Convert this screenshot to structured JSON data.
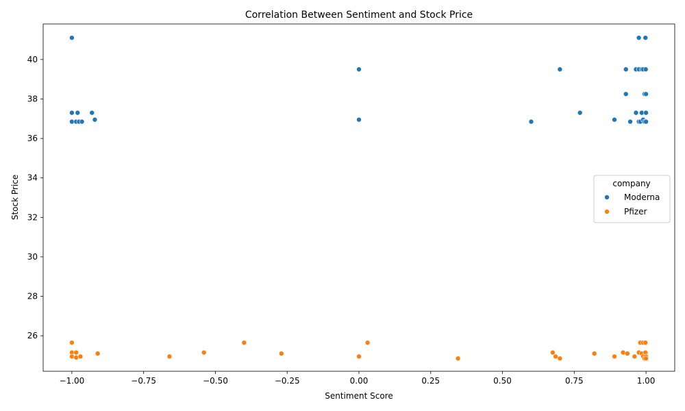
{
  "chart_data": {
    "type": "scatter",
    "title": "Correlation Between Sentiment and Stock Price",
    "xlabel": "Sentiment Score",
    "ylabel": "Stock Price",
    "xlim": [
      -1.1,
      1.1
    ],
    "ylim": [
      24.2,
      41.8
    ],
    "x_ticks": [
      -1.0,
      -0.75,
      -0.5,
      -0.25,
      0.0,
      0.25,
      0.5,
      0.75,
      1.0
    ],
    "x_tick_labels": [
      "−1.00",
      "−0.75",
      "−0.50",
      "−0.25",
      "0.00",
      "0.25",
      "0.50",
      "0.75",
      "1.00"
    ],
    "y_ticks": [
      26,
      28,
      30,
      32,
      34,
      36,
      38,
      40
    ],
    "y_tick_labels": [
      "26",
      "28",
      "30",
      "32",
      "34",
      "36",
      "38",
      "40"
    ],
    "grid": false,
    "legend": {
      "title": "company",
      "placement": "center-right"
    },
    "series": [
      {
        "name": "Moderna",
        "color": "#1f77b4",
        "points": [
          [
            -1.0,
            41.1
          ],
          [
            -1.0,
            37.3
          ],
          [
            -1.0,
            36.85
          ],
          [
            -0.98,
            37.3
          ],
          [
            -0.985,
            36.85
          ],
          [
            -0.975,
            36.85
          ],
          [
            -0.965,
            36.85
          ],
          [
            -0.93,
            37.3
          ],
          [
            -0.92,
            36.95
          ],
          [
            0.0,
            39.5
          ],
          [
            0.0,
            36.95
          ],
          [
            0.6,
            36.85
          ],
          [
            0.7,
            39.5
          ],
          [
            0.77,
            37.3
          ],
          [
            0.89,
            36.95
          ],
          [
            0.93,
            39.5
          ],
          [
            0.93,
            38.25
          ],
          [
            0.945,
            36.85
          ],
          [
            0.965,
            39.5
          ],
          [
            0.965,
            37.3
          ],
          [
            0.975,
            41.1
          ],
          [
            0.975,
            39.5
          ],
          [
            0.975,
            36.85
          ],
          [
            0.98,
            36.85
          ],
          [
            0.985,
            37.3
          ],
          [
            0.985,
            39.5
          ],
          [
            0.99,
            39.5
          ],
          [
            0.99,
            36.95
          ],
          [
            0.995,
            38.25
          ],
          [
            0.995,
            36.85
          ],
          [
            0.998,
            41.1
          ],
          [
            0.999,
            39.5
          ],
          [
            1.0,
            38.25
          ],
          [
            1.0,
            37.3
          ],
          [
            1.0,
            36.85
          ]
        ]
      },
      {
        "name": "Pfizer",
        "color": "#ff7f0e",
        "points": [
          [
            -1.0,
            25.65
          ],
          [
            -1.0,
            25.15
          ],
          [
            -1.0,
            24.95
          ],
          [
            -0.985,
            25.15
          ],
          [
            -0.985,
            24.9
          ],
          [
            -0.97,
            24.95
          ],
          [
            -0.91,
            25.1
          ],
          [
            -0.66,
            24.95
          ],
          [
            -0.54,
            25.15
          ],
          [
            -0.4,
            25.65
          ],
          [
            -0.27,
            25.1
          ],
          [
            0.0,
            24.95
          ],
          [
            0.03,
            25.65
          ],
          [
            0.345,
            24.85
          ],
          [
            0.675,
            25.15
          ],
          [
            0.685,
            24.95
          ],
          [
            0.7,
            24.85
          ],
          [
            0.82,
            25.1
          ],
          [
            0.89,
            24.95
          ],
          [
            0.92,
            25.15
          ],
          [
            0.935,
            25.1
          ],
          [
            0.96,
            24.95
          ],
          [
            0.975,
            25.15
          ],
          [
            0.98,
            25.65
          ],
          [
            0.985,
            25.1
          ],
          [
            0.99,
            25.65
          ],
          [
            0.99,
            24.95
          ],
          [
            0.995,
            24.85
          ],
          [
            0.998,
            25.65
          ],
          [
            0.998,
            25.15
          ],
          [
            1.0,
            24.95
          ],
          [
            1.0,
            24.85
          ]
        ]
      }
    ]
  }
}
